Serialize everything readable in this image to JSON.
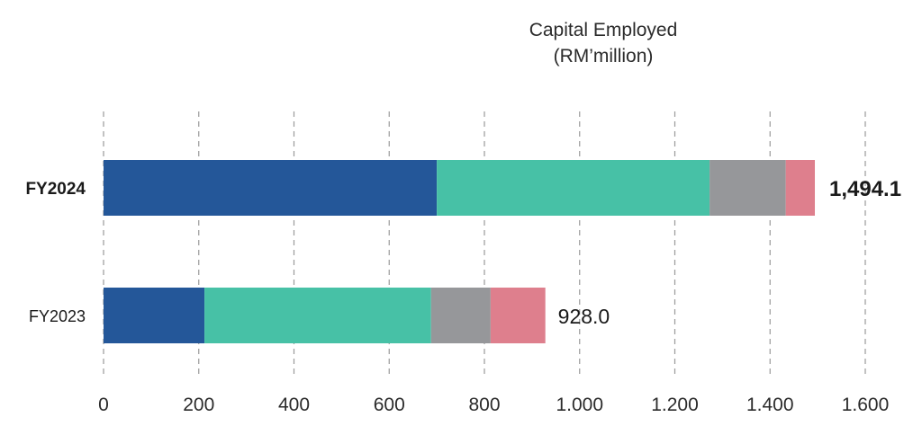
{
  "chart_data": {
    "type": "bar",
    "orientation": "horizontal",
    "stacked": true,
    "title": "Capital Employed",
    "subtitle": "(RM’million)",
    "categories": [
      "FY2024",
      "FY2023"
    ],
    "category_emphasis": [
      true,
      false
    ],
    "series": [
      {
        "values": [
          700,
          212
        ],
        "color": "#245799"
      },
      {
        "values": [
          573,
          476
        ],
        "color": "#47c1a6"
      },
      {
        "values": [
          160,
          125
        ],
        "color": "#96979a"
      },
      {
        "values": [
          61.1,
          115
        ],
        "color": "#de7f8d"
      }
    ],
    "totals": [
      "1,494.1",
      "928.0"
    ],
    "xlim": [
      0,
      1600
    ],
    "x_ticks": [
      0,
      200,
      400,
      600,
      800,
      1000,
      1200,
      1400,
      1600
    ],
    "x_tick_labels": [
      "0",
      "200",
      "400",
      "600",
      "800",
      "1.000",
      "1.200",
      "1.400",
      "1.600"
    ],
    "grid": true,
    "legend": "none"
  }
}
